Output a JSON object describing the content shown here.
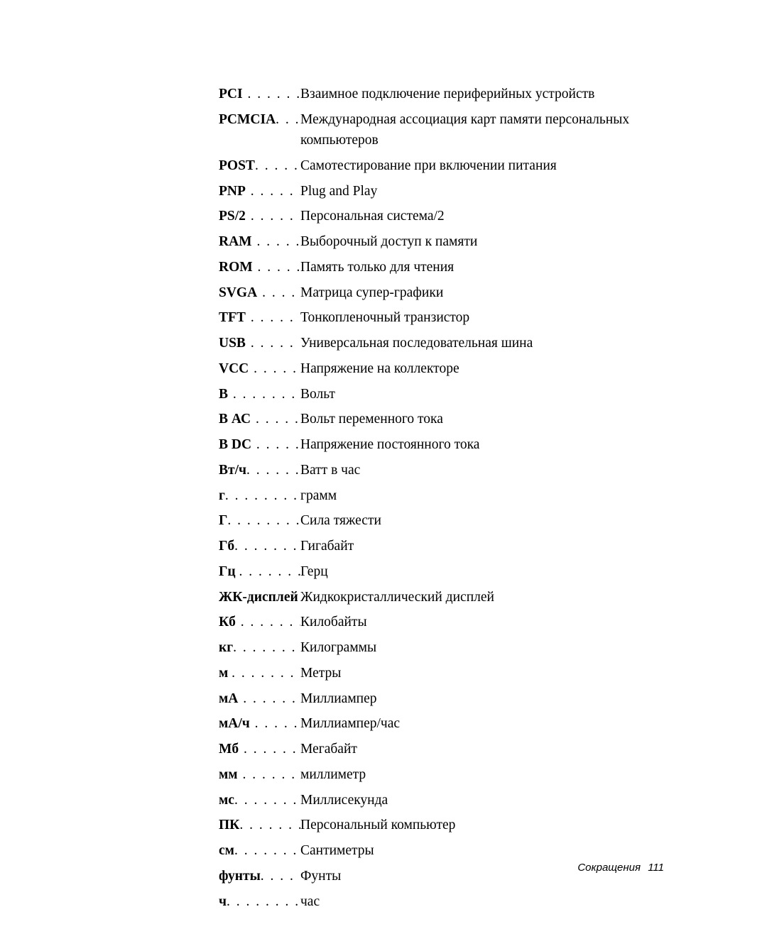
{
  "entries": [
    {
      "term": "PCI",
      "dots": " . . . . . . . ",
      "definition": "Взаимное подключение периферийных устройств"
    },
    {
      "term": "PCMCIA",
      "dots": ". . . ",
      "definition": "Международная ассоциация карт памяти персональных компьютеров"
    },
    {
      "term": "POST",
      "dots": ". . . . . . ",
      "definition": "Самотестирование при включении питания"
    },
    {
      "term": "PNP",
      "dots": " . . . . . . . ",
      "definition": "Plug and Play"
    },
    {
      "term": "PS/2",
      "dots": " . . . . . . . ",
      "definition": "Персональная система/2"
    },
    {
      "term": "RAM",
      "dots": " . . . . . . ",
      "definition": "Выборочный доступ к памяти"
    },
    {
      "term": "ROM",
      "dots": " . . . . . . ",
      "definition": "Память только для чтения"
    },
    {
      "term": "SVGA",
      "dots": " . . . . . ",
      "definition": "Матрица супер-графики"
    },
    {
      "term": "TFT",
      "dots": " . . . . . . . ",
      "definition": "Тонкопленочный транзистор"
    },
    {
      "term": "USB",
      "dots": " . . . . . . . ",
      "definition": "Универсальная последовательная шина"
    },
    {
      "term": "VCC",
      "dots": " . . . . . . ",
      "definition": "Напряжение на коллекторе"
    },
    {
      "term": "В",
      "dots": " . . . . . . . . . ",
      "definition": "Вольт"
    },
    {
      "term": "В АС",
      "dots": " . . . . . . ",
      "definition": "Вольт переменного тока"
    },
    {
      "term": "В DC",
      "dots": " . . . . . . ",
      "definition": "Напряжение постоянного тока"
    },
    {
      "term": "Вт/ч",
      "dots": ". . . . . . . ",
      "definition": "Ватт в час"
    },
    {
      "term": "г",
      "dots": ". . . . . . . . . . ",
      "definition": "грамм"
    },
    {
      "term": "Г",
      "dots": ". . . . . . . . . . ",
      "definition": "Сила тяжести"
    },
    {
      "term": "Гб",
      "dots": ". . . . . . . . . ",
      "definition": "Гигабайт"
    },
    {
      "term": "Гц ",
      "dots": ". . . . . . . . ",
      "definition": "Герц"
    },
    {
      "term": "ЖК-дисплей",
      "dots": " ",
      "definition": "Жидкокристаллический дисплей"
    },
    {
      "term": "Кб",
      "dots": " . . . . . . . . ",
      "definition": "Килобайты"
    },
    {
      "term": "кг",
      "dots": ". . . . . . . . . ",
      "definition": "Килограммы"
    },
    {
      "term": "м ",
      "dots": ". . . . . . . . . ",
      "definition": "Метры"
    },
    {
      "term": "мА",
      "dots": " . . . . . . . . ",
      "definition": "Миллиампер"
    },
    {
      "term": "мА/ч",
      "dots": " . . . . . . ",
      "definition": "Миллиампер/час"
    },
    {
      "term": "Мб",
      "dots": " . . . . . . . . ",
      "definition": "Мегабайт"
    },
    {
      "term": "мм",
      "dots": " . . . . . . . . ",
      "definition": "миллиметр"
    },
    {
      "term": "мс",
      "dots": ". . . . . . . . . ",
      "definition": "Миллисекунда"
    },
    {
      "term": "ПК",
      "dots": ". . . . . . . . ",
      "definition": "Персональный компьютер"
    },
    {
      "term": "см",
      "dots": ". . . . . . . . . ",
      "definition": "Сантиметры"
    },
    {
      "term": "фунты",
      "dots": ". . . . . ",
      "definition": "Фунты"
    },
    {
      "term": "ч",
      "dots": ". . . . . . . . . . ",
      "definition": "час"
    }
  ],
  "footer": {
    "label": "Сокращения",
    "page": "111"
  }
}
